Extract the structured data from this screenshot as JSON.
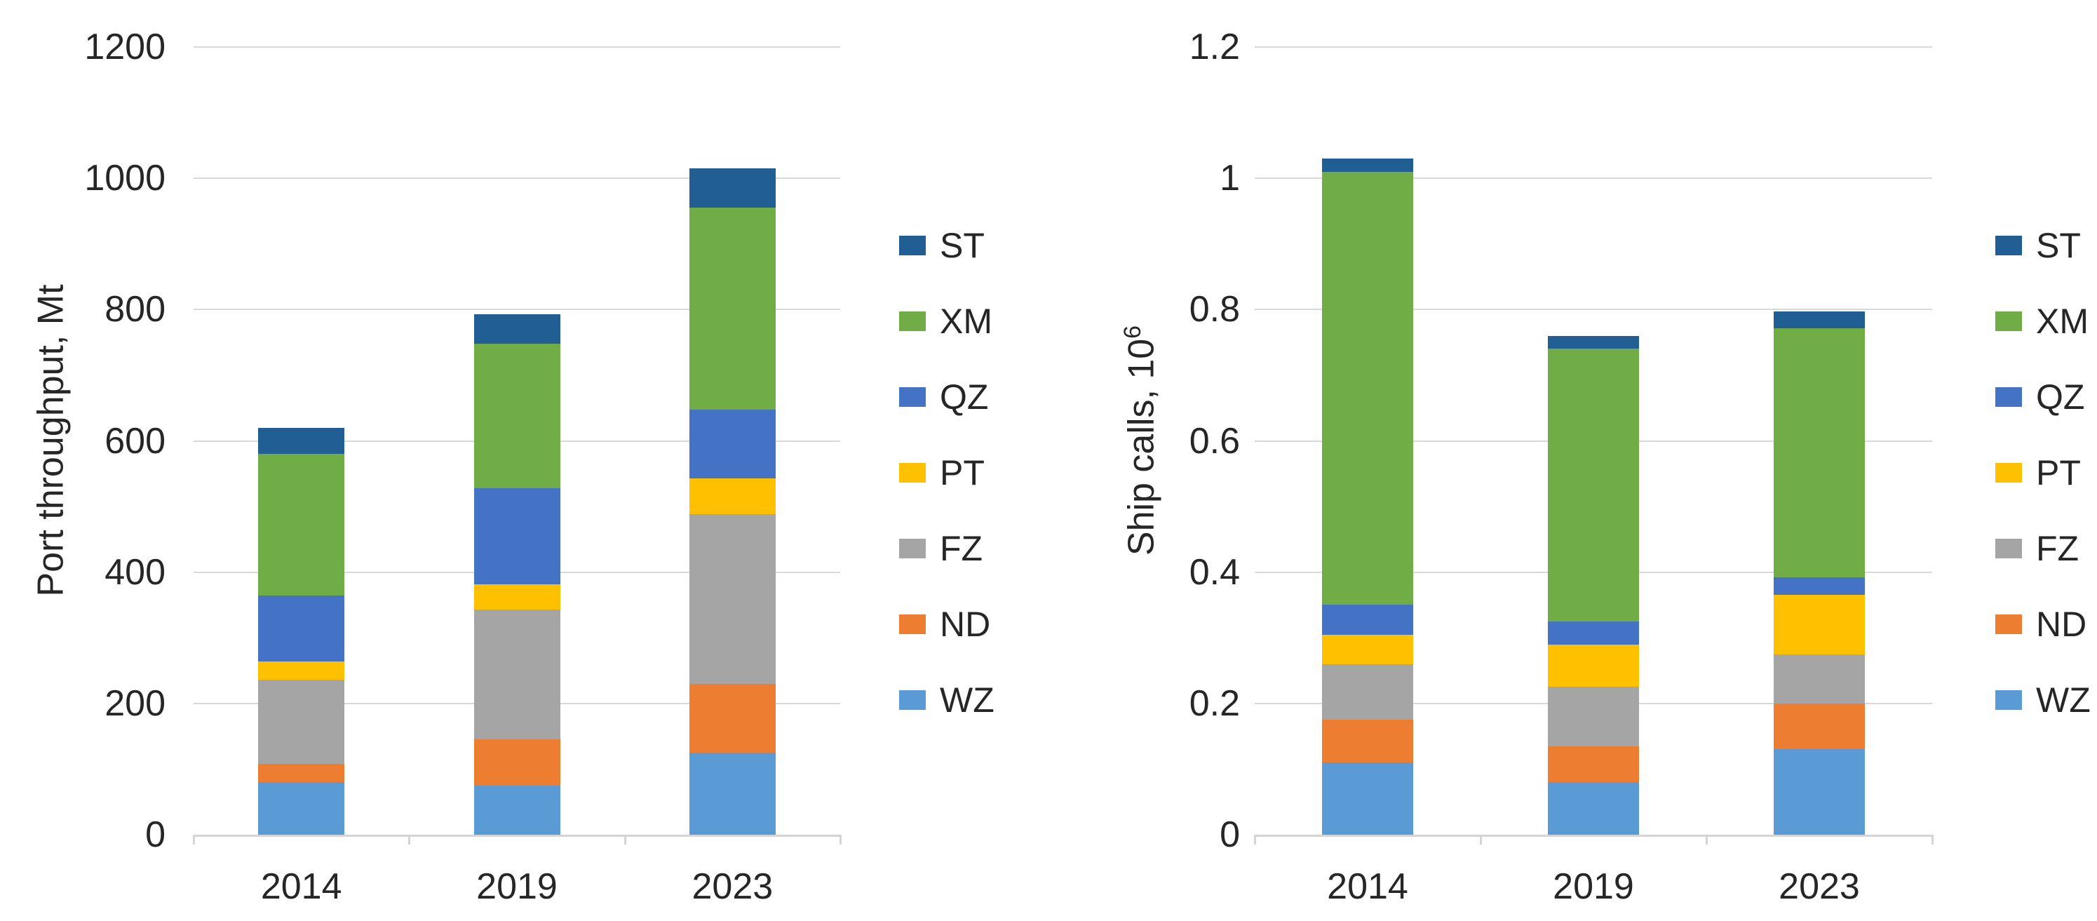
{
  "figure_title": "",
  "chart_data": [
    {
      "type": "bar",
      "stacked": true,
      "ylabel": "Port throughput, Mt",
      "ylabel_sup": "",
      "categories": [
        "2014",
        "2019",
        "2023"
      ],
      "series": [
        {
          "name": "WZ",
          "color": "#5B9BD5",
          "values": [
            80,
            75,
            125
          ]
        },
        {
          "name": "ND",
          "color": "#ED7D31",
          "values": [
            28,
            70,
            105
          ]
        },
        {
          "name": "FZ",
          "color": "#A5A5A5",
          "values": [
            128,
            198,
            258
          ]
        },
        {
          "name": "PT",
          "color": "#FFC000",
          "values": [
            28,
            38,
            55
          ]
        },
        {
          "name": "QZ",
          "color": "#4472C4",
          "values": [
            100,
            147,
            105
          ]
        },
        {
          "name": "XM",
          "color": "#70AD47",
          "values": [
            216,
            220,
            307
          ]
        },
        {
          "name": "ST",
          "color": "#215E94",
          "values": [
            40,
            45,
            60
          ]
        }
      ],
      "totals": [
        620,
        793,
        1015
      ],
      "ylim": [
        0,
        1200
      ],
      "ytick_step": 200,
      "ytick_labels": [
        "0",
        "200",
        "400",
        "600",
        "800",
        "1000",
        "1200"
      ],
      "grid": true,
      "legend_position": "right",
      "legend_order_top_to_bottom": [
        "ST",
        "XM",
        "QZ",
        "PT",
        "FZ",
        "ND",
        "WZ"
      ]
    },
    {
      "type": "bar",
      "stacked": true,
      "ylabel": "Ship calls, 10",
      "ylabel_sup": "6",
      "categories": [
        "2014",
        "2019",
        "2023"
      ],
      "series": [
        {
          "name": "WZ",
          "color": "#5B9BD5",
          "values": [
            0.11,
            0.08,
            0.13
          ]
        },
        {
          "name": "ND",
          "color": "#ED7D31",
          "values": [
            0.065,
            0.055,
            0.07
          ]
        },
        {
          "name": "FZ",
          "color": "#A5A5A5",
          "values": [
            0.085,
            0.09,
            0.075
          ]
        },
        {
          "name": "PT",
          "color": "#FFC000",
          "values": [
            0.045,
            0.065,
            0.09
          ]
        },
        {
          "name": "QZ",
          "color": "#4472C4",
          "values": [
            0.045,
            0.035,
            0.027
          ]
        },
        {
          "name": "XM",
          "color": "#70AD47",
          "values": [
            0.66,
            0.415,
            0.38
          ]
        },
        {
          "name": "ST",
          "color": "#215E94",
          "values": [
            0.02,
            0.02,
            0.025
          ]
        }
      ],
      "totals": [
        1.03,
        0.76,
        0.797
      ],
      "ylim": [
        0,
        1.2
      ],
      "ytick_step": 0.2,
      "ytick_labels": [
        "0",
        "0.2",
        "0.4",
        "0.6",
        "0.8",
        "1",
        "1.2"
      ],
      "grid": true,
      "legend_position": "right",
      "legend_order_top_to_bottom": [
        "ST",
        "XM",
        "QZ",
        "PT",
        "FZ",
        "ND",
        "WZ"
      ]
    }
  ]
}
